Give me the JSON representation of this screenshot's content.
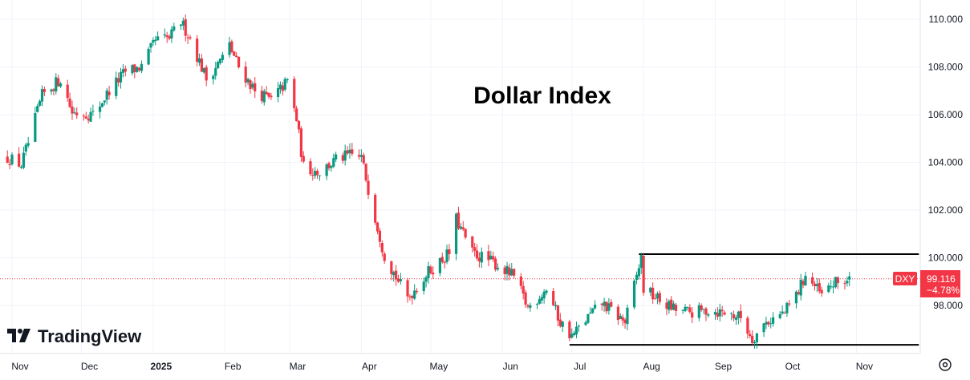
{
  "brand": {
    "name": "TradingView",
    "logo_icon": "tradingview-logo-icon"
  },
  "settings_icon": "gear-icon",
  "colors": {
    "up": "#089981",
    "down": "#f23645",
    "level_line": "#000000",
    "price_line": "#f23645",
    "grid": "#f0f3fa",
    "axis_border": "#e0e3eb"
  },
  "last_price": {
    "symbol": "DXY",
    "value": "99.116",
    "change": "−4.78%"
  },
  "chart_data": {
    "type": "candlestick",
    "title": "Dollar Index",
    "symbol": "DXY",
    "grid": true,
    "price_axis_side": "right",
    "y_ticks": [
      "98.000",
      "100.000",
      "102.000",
      "104.000",
      "106.000",
      "108.000",
      "110.000"
    ],
    "ylim": [
      96.3,
      110.2
    ],
    "x_axis_labels": [
      "Nov",
      "Dec",
      "2025",
      "Feb",
      "Mar",
      "Apr",
      "May",
      "Jun",
      "Jul",
      "Aug",
      "Sep",
      "Oct",
      "Nov"
    ],
    "x_axis_start": "2024-11-01",
    "x_axis_end": "2025-11-30",
    "month_starts": [
      "2024-11-01",
      "2024-12-01",
      "2025-01-01",
      "2025-02-01",
      "2025-03-01",
      "2025-04-01",
      "2025-05-01",
      "2025-06-01",
      "2025-07-01",
      "2025-08-01",
      "2025-09-01",
      "2025-10-01",
      "2025-11-01"
    ],
    "first_date": "2024-10-30",
    "close_path": [
      [
        "2024-10-30",
        104.2
      ],
      [
        "2024-11-05",
        103.9
      ],
      [
        "2024-11-08",
        104.8
      ],
      [
        "2024-11-14",
        106.8
      ],
      [
        "2024-11-22",
        107.5
      ],
      [
        "2024-11-27",
        106.1
      ],
      [
        "2024-12-06",
        106.0
      ],
      [
        "2024-12-13",
        107.0
      ],
      [
        "2024-12-20",
        107.8
      ],
      [
        "2024-12-27",
        108.0
      ],
      [
        "2025-01-02",
        109.1
      ],
      [
        "2025-01-08",
        109.2
      ],
      [
        "2025-01-13",
        109.9
      ],
      [
        "2025-01-17",
        109.2
      ],
      [
        "2025-01-24",
        107.5
      ],
      [
        "2025-01-31",
        108.4
      ],
      [
        "2025-02-03",
        108.9
      ],
      [
        "2025-02-07",
        108.0
      ],
      [
        "2025-02-14",
        107.0
      ],
      [
        "2025-02-21",
        106.6
      ],
      [
        "2025-02-28",
        107.4
      ],
      [
        "2025-03-04",
        105.8
      ],
      [
        "2025-03-07",
        103.8
      ],
      [
        "2025-03-14",
        103.6
      ],
      [
        "2025-03-21",
        104.1
      ],
      [
        "2025-03-27",
        104.3
      ],
      [
        "2025-04-01",
        104.2
      ],
      [
        "2025-04-04",
        102.9
      ],
      [
        "2025-04-11",
        100.1
      ],
      [
        "2025-04-21",
        98.3
      ],
      [
        "2025-04-30",
        99.4
      ],
      [
        "2025-05-09",
        100.2
      ],
      [
        "2025-05-12",
        101.6
      ],
      [
        "2025-05-19",
        100.2
      ],
      [
        "2025-05-28",
        99.8
      ],
      [
        "2025-06-06",
        99.2
      ],
      [
        "2025-06-12",
        97.9
      ],
      [
        "2025-06-20",
        98.7
      ],
      [
        "2025-06-26",
        97.3
      ],
      [
        "2025-07-01",
        96.7
      ],
      [
        "2025-07-08",
        97.5
      ],
      [
        "2025-07-14",
        98.1
      ],
      [
        "2025-07-24",
        97.3
      ],
      [
        "2025-07-31",
        100.0
      ],
      [
        "2025-08-01",
        98.7
      ],
      [
        "2025-08-08",
        98.2
      ],
      [
        "2025-08-15",
        97.8
      ],
      [
        "2025-08-22",
        97.7
      ],
      [
        "2025-08-29",
        97.8
      ],
      [
        "2025-09-05",
        97.7
      ],
      [
        "2025-09-12",
        97.5
      ],
      [
        "2025-09-17",
        96.6
      ],
      [
        "2025-09-23",
        97.3
      ],
      [
        "2025-10-01",
        97.7
      ],
      [
        "2025-10-07",
        98.6
      ],
      [
        "2025-10-10",
        99.3
      ],
      [
        "2025-10-17",
        98.4
      ],
      [
        "2025-10-22",
        98.9
      ],
      [
        "2025-10-29",
        99.1
      ]
    ],
    "levels": [
      {
        "price": 100.15,
        "from": "2025-07-30",
        "to": "2025-11-28"
      },
      {
        "price": 96.35,
        "from": "2025-06-30",
        "to": "2025-11-28"
      }
    ]
  }
}
